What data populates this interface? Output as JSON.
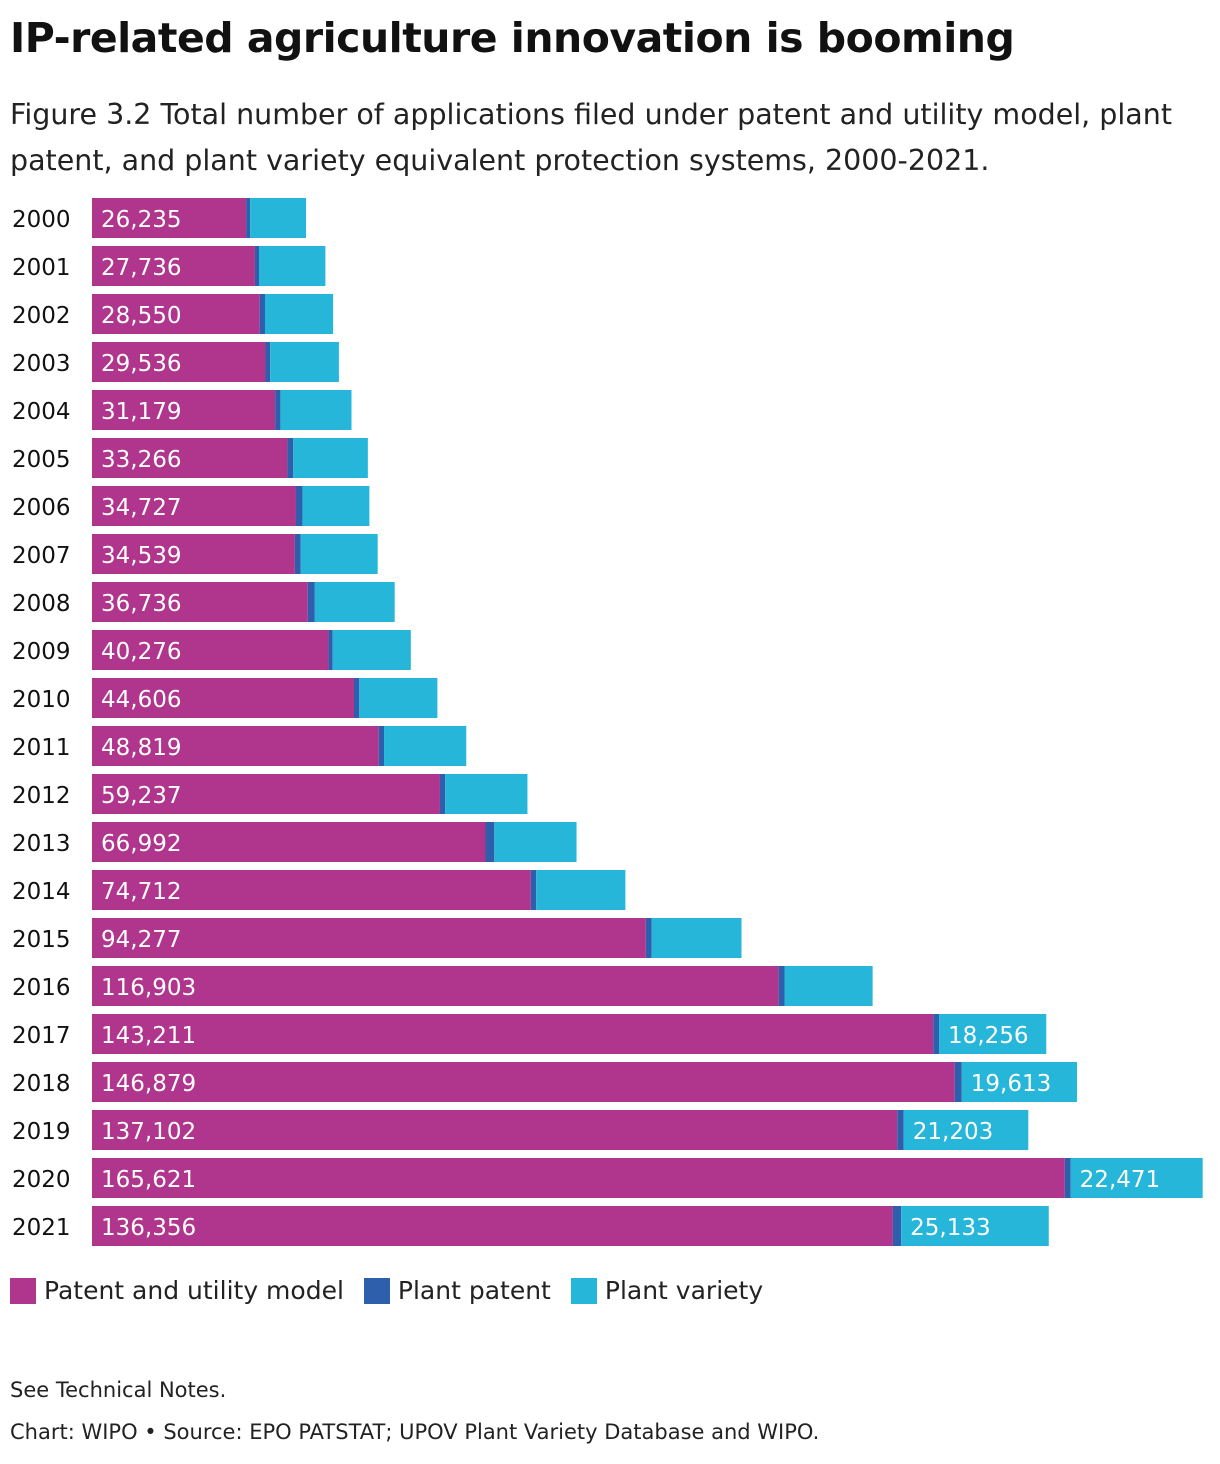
{
  "title": "IP-related agriculture innovation is booming",
  "subtitle": "Figure 3.2 Total number of applications filed under patent and utility model, plant patent, and plant variety equivalent protection systems, 2000-2021.",
  "legend": [
    {
      "label": "Patent and utility model",
      "color": "#B0358C"
    },
    {
      "label": "Plant patent",
      "color": "#2E5FAC"
    },
    {
      "label": "Plant variety",
      "color": "#26B6D9"
    }
  ],
  "notes": {
    "technical": "See Technical Notes.",
    "source": "Chart: WIPO • Source: EPO PATSTAT; UPOV Plant Variety Database and WIPO."
  },
  "chart_data": {
    "type": "bar",
    "orientation": "horizontal",
    "stacked": true,
    "title": "IP-related agriculture innovation is booming",
    "categories": [
      "2000",
      "2001",
      "2002",
      "2003",
      "2004",
      "2005",
      "2006",
      "2007",
      "2008",
      "2009",
      "2010",
      "2011",
      "2012",
      "2013",
      "2014",
      "2015",
      "2016",
      "2017",
      "2018",
      "2019",
      "2020",
      "2021"
    ],
    "series": [
      {
        "name": "Patent and utility model",
        "color": "#B0358C",
        "values": [
          26235,
          27736,
          28550,
          29536,
          31179,
          33266,
          34727,
          34539,
          36736,
          40276,
          44606,
          48819,
          59237,
          66992,
          74712,
          94277,
          116903,
          143211,
          146879,
          137102,
          165621,
          136356
        ],
        "labels": [
          "26,235",
          "27,736",
          "28,550",
          "29,536",
          "31,179",
          "33,266",
          "34,727",
          "34,539",
          "36,736",
          "40,276",
          "44,606",
          "48,819",
          "59,237",
          "66,992",
          "74,712",
          "94,277",
          "116,903",
          "143,211",
          "146,879",
          "137,102",
          "165,621",
          "136,356"
        ]
      },
      {
        "name": "Plant patent",
        "color": "#2E5FAC",
        "values": [
          700,
          700,
          900,
          800,
          900,
          1000,
          1100,
          1000,
          1200,
          700,
          900,
          900,
          900,
          1500,
          900,
          1000,
          1000,
          1000,
          1200,
          1100,
          1000,
          1400
        ],
        "labels": []
      },
      {
        "name": "Plant variety",
        "color": "#26B6D9",
        "values": [
          9500,
          11300,
          11600,
          11700,
          12100,
          12700,
          11400,
          13100,
          13600,
          13300,
          13300,
          14000,
          14000,
          14000,
          15200,
          15300,
          15000,
          18256,
          19613,
          21203,
          22471,
          25133
        ],
        "labels": [
          "",
          "",
          "",
          "",
          "",
          "",
          "",
          "",
          "",
          "",
          "",
          "",
          "",
          "",
          "",
          "",
          "",
          "18,256",
          "19,613",
          "21,203",
          "22,471",
          "25,133"
        ]
      }
    ],
    "xlabel": "",
    "ylabel": "",
    "xlim": [
      0,
      190000
    ],
    "grid": false,
    "legend_position": "bottom-left"
  }
}
